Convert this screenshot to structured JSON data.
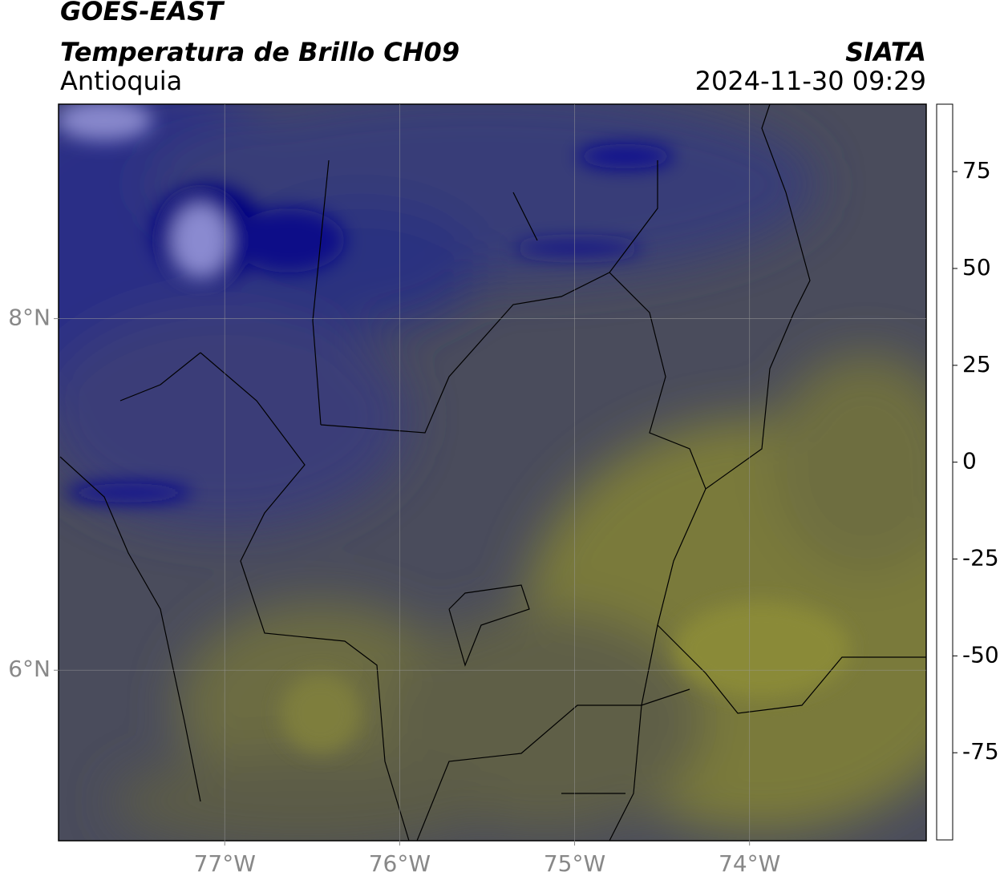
{
  "header": {
    "satellite": "GOES-EAST",
    "product": "Temperatura de Brillo CH09",
    "region": "Antioquia",
    "source": "SIATA",
    "datetime": "2024-11-30 09:29"
  },
  "map": {
    "xlim": [
      -77.95,
      -72.99
    ],
    "ylim": [
      5.03,
      9.22
    ],
    "xticks": [
      {
        "value": -77,
        "label": "77°W"
      },
      {
        "value": -76,
        "label": "76°W"
      },
      {
        "value": -75,
        "label": "75°W"
      },
      {
        "value": -74,
        "label": "74°W"
      }
    ],
    "yticks": [
      {
        "value": 6,
        "label": "6°N"
      },
      {
        "value": 8,
        "label": "8°N"
      }
    ],
    "grid": true
  },
  "colorbar": {
    "lim": [
      -97.5,
      92.4
    ],
    "ticks": [
      -75,
      -50,
      -25,
      0,
      25,
      50,
      75
    ],
    "stops": [
      {
        "value": -97.5,
        "color": "#ffffff"
      },
      {
        "value": -93,
        "color": "#ffffff"
      },
      {
        "value": -92.9,
        "color": "#00e5e0"
      },
      {
        "value": -85,
        "color": "#1fb58f"
      },
      {
        "value": -75,
        "color": "#1e8a3a"
      },
      {
        "value": -65,
        "color": "#3c8c2c"
      },
      {
        "value": -58,
        "color": "#c8e0b8"
      },
      {
        "value": -52,
        "color": "#ffffff"
      },
      {
        "value": -45,
        "color": "#c8c8e8"
      },
      {
        "value": -38,
        "color": "#7070c0"
      },
      {
        "value": -30,
        "color": "#000080"
      },
      {
        "value": -27,
        "color": "#2a2a70"
      },
      {
        "value": -24,
        "color": "#4a4a58"
      },
      {
        "value": -20,
        "color": "#6e6e40"
      },
      {
        "value": -15,
        "color": "#d8d800"
      },
      {
        "value": -10,
        "color": "#ffff00"
      },
      {
        "value": 0,
        "color": "#ff9900"
      },
      {
        "value": 8,
        "color": "#ff0000"
      },
      {
        "value": 8.7,
        "color": "#000000"
      },
      {
        "value": 92.4,
        "color": "#000000"
      }
    ]
  }
}
